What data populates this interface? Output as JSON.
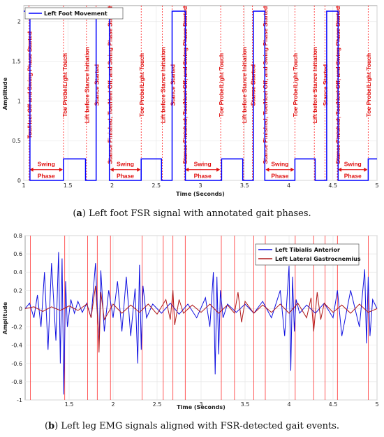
{
  "chart_data": [
    {
      "type": "line",
      "panel_label": "a",
      "caption": "Left foot FSR signal with annotated gait phases.",
      "xlabel": "Time (Seconds)",
      "ylabel": "Amplitude",
      "xlim": [
        1,
        5
      ],
      "ylim": [
        0,
        2.2
      ],
      "xticks": [
        "1",
        "1.5",
        "2",
        "2.5",
        "3",
        "3.5",
        "4",
        "4.5",
        "5"
      ],
      "yticks": [
        "0",
        "0.5",
        "1",
        "1.5",
        "2"
      ],
      "legend_position": "top-left",
      "series": [
        {
          "name": "Left Foot Movement",
          "color": "#0000ff",
          "x": [
            1.0,
            1.07,
            1.07,
            1.45,
            1.45,
            1.7,
            1.7,
            1.82,
            1.82,
            1.97,
            1.97,
            2.33,
            2.33,
            2.56,
            2.56,
            2.68,
            2.68,
            2.83,
            2.83,
            3.24,
            3.24,
            3.48,
            3.48,
            3.6,
            3.6,
            3.73,
            3.73,
            4.07,
            4.07,
            4.3,
            4.3,
            4.43,
            4.43,
            4.56,
            4.56,
            4.9,
            4.9,
            5.0
          ],
          "y": [
            2.13,
            2.13,
            0,
            0,
            0.27,
            0.27,
            0,
            0,
            2.13,
            2.13,
            0,
            0,
            0.27,
            0.27,
            0,
            0,
            2.13,
            2.13,
            0,
            0,
            0.27,
            0.27,
            0,
            0,
            2.13,
            2.13,
            0,
            0,
            0.27,
            0.27,
            0,
            0,
            2.13,
            2.13,
            0,
            0,
            0.27,
            0.27
          ]
        }
      ],
      "event_lines_x": [
        1.06,
        1.45,
        1.71,
        1.82,
        1.97,
        2.33,
        2.57,
        2.68,
        2.82,
        3.23,
        3.49,
        3.59,
        3.73,
        4.07,
        4.29,
        4.41,
        4.55,
        4.9
      ],
      "annotations": [
        {
          "text": "Toe/Heel Off and Swing Phase Started",
          "x": 1.09
        },
        {
          "text": "Toe Probe/Light Touch",
          "x": 1.49
        },
        {
          "text": "Lift before Stance Initiation",
          "x": 1.74
        },
        {
          "text": "Stance Started",
          "x": 1.85
        },
        {
          "text": "Stance Finished, Toe/Heel Off, and Swing Phase Started",
          "x": 2.0
        },
        {
          "text": "Toe Probe/Light Touch",
          "x": 2.36
        },
        {
          "text": "Lift before Stance Initiation",
          "x": 2.6
        },
        {
          "text": "Stance Started",
          "x": 2.71
        },
        {
          "text": "Stance Finished, Toe/Heel Off, and Swing Phase Started",
          "x": 2.85
        },
        {
          "text": "Toe Probe/Light Touch",
          "x": 3.26
        },
        {
          "text": "Lift before Stance Initiation",
          "x": 3.52
        },
        {
          "text": "Stance Started",
          "x": 3.62
        },
        {
          "text": "Stance Finished, Toe/Heel Off, and Swing Phase Started",
          "x": 3.76
        },
        {
          "text": "Toe Probe/Light Touch",
          "x": 4.1
        },
        {
          "text": "Lift before Stance Initiation",
          "x": 4.32
        },
        {
          "text": "Stance Started",
          "x": 4.44
        },
        {
          "text": "Stance Finished, Toe/Heel Off, and Swing Phase Started",
          "x": 4.58
        },
        {
          "text": "Toe Probe/Light Touch",
          "x": 4.93
        }
      ],
      "swing_phases": [
        {
          "label_top": "Swing",
          "label_bottom": "Phase",
          "x_start": 1.06,
          "x_end": 1.45
        },
        {
          "label_top": "Swing",
          "label_bottom": "Phase",
          "x_start": 1.97,
          "x_end": 2.33
        },
        {
          "label_top": "Swing",
          "label_bottom": "Phase",
          "x_start": 2.82,
          "x_end": 3.23
        },
        {
          "label_top": "Swing",
          "label_bottom": "Phase",
          "x_start": 3.73,
          "x_end": 4.07
        },
        {
          "label_top": "Swing",
          "label_bottom": "Phase",
          "x_start": 4.55,
          "x_end": 4.9
        }
      ]
    },
    {
      "type": "line",
      "panel_label": "b",
      "caption": "Left leg EMG signals aligned with FSR-detected gait events.",
      "xlabel": "Time (Seconds)",
      "ylabel": "Amplitude",
      "xlim": [
        1,
        5
      ],
      "ylim": [
        -1,
        0.8
      ],
      "xticks": [
        "1.5",
        "2",
        "2.5",
        "3",
        "3.5",
        "4",
        "4.5",
        "5"
      ],
      "yticks": [
        "0.8",
        "0.6",
        "0.4",
        "0.2",
        "0",
        "-0.2",
        "-0.4",
        "-0.6",
        "-0.8",
        "-1"
      ],
      "legend_position": "top-right",
      "series": [
        {
          "name": "Left Tibialis Anterior",
          "color": "#1010e0",
          "x": [
            1.0,
            1.05,
            1.1,
            1.14,
            1.18,
            1.22,
            1.26,
            1.3,
            1.35,
            1.38,
            1.4,
            1.42,
            1.44,
            1.46,
            1.48,
            1.52,
            1.56,
            1.6,
            1.65,
            1.7,
            1.75,
            1.8,
            1.84,
            1.86,
            1.9,
            1.95,
            2.0,
            2.05,
            2.1,
            2.15,
            2.2,
            2.25,
            2.28,
            2.3,
            2.32,
            2.34,
            2.38,
            2.45,
            2.55,
            2.65,
            2.75,
            2.85,
            2.95,
            3.05,
            3.1,
            3.14,
            3.16,
            3.18,
            3.2,
            3.22,
            3.25,
            3.3,
            3.4,
            3.5,
            3.6,
            3.7,
            3.8,
            3.9,
            3.95,
            4.0,
            4.02,
            4.04,
            4.06,
            4.08,
            4.12,
            4.2,
            4.3,
            4.4,
            4.5,
            4.55,
            4.6,
            4.7,
            4.8,
            4.86,
            4.88,
            4.9,
            4.92,
            4.95,
            5.0
          ],
          "y": [
            0.0,
            0.06,
            -0.1,
            0.15,
            -0.2,
            0.4,
            -0.45,
            0.5,
            -0.35,
            0.62,
            -0.6,
            0.55,
            -0.94,
            0.3,
            -0.2,
            0.1,
            -0.05,
            0.08,
            -0.04,
            0.06,
            -0.1,
            0.5,
            -0.42,
            0.42,
            -0.25,
            0.2,
            -0.1,
            0.3,
            -0.25,
            0.35,
            -0.3,
            0.22,
            -0.6,
            0.48,
            -0.45,
            0.25,
            -0.1,
            0.05,
            -0.05,
            0.06,
            -0.06,
            0.05,
            -0.1,
            0.12,
            -0.2,
            0.4,
            -0.72,
            0.35,
            -0.5,
            0.2,
            -0.1,
            0.05,
            -0.04,
            0.05,
            -0.05,
            0.08,
            -0.1,
            0.2,
            -0.3,
            0.47,
            -0.68,
            0.35,
            -0.25,
            0.1,
            -0.05,
            0.04,
            -0.05,
            0.06,
            -0.1,
            0.2,
            -0.3,
            0.2,
            -0.2,
            0.43,
            -0.38,
            0.35,
            -0.3,
            0.1,
            0.0
          ]
        },
        {
          "name": "Left Lateral Gastrocnemius",
          "color": "#b01818",
          "x": [
            1.0,
            1.1,
            1.2,
            1.3,
            1.4,
            1.5,
            1.6,
            1.7,
            1.75,
            1.8,
            1.83,
            1.84,
            1.86,
            1.9,
            2.0,
            2.1,
            2.2,
            2.3,
            2.4,
            2.5,
            2.6,
            2.65,
            2.68,
            2.7,
            2.75,
            2.8,
            2.9,
            3.0,
            3.1,
            3.2,
            3.3,
            3.38,
            3.42,
            3.46,
            3.5,
            3.6,
            3.7,
            3.8,
            3.9,
            4.0,
            4.1,
            4.2,
            4.25,
            4.28,
            4.32,
            4.36,
            4.4,
            4.5,
            4.6,
            4.7,
            4.8,
            4.9,
            5.0
          ],
          "y": [
            0.0,
            0.02,
            -0.03,
            0.02,
            -0.02,
            0.03,
            -0.02,
            0.05,
            -0.1,
            0.25,
            -0.2,
            -0.48,
            0.18,
            -0.12,
            0.05,
            -0.05,
            0.04,
            -0.04,
            0.05,
            -0.06,
            0.1,
            -0.12,
            0.2,
            -0.18,
            0.1,
            -0.05,
            0.04,
            -0.04,
            0.05,
            -0.05,
            0.04,
            -0.05,
            0.18,
            -0.15,
            0.08,
            -0.05,
            0.04,
            -0.04,
            0.05,
            -0.05,
            0.06,
            -0.1,
            0.12,
            -0.25,
            0.18,
            -0.12,
            0.06,
            -0.04,
            0.04,
            -0.05,
            0.05,
            -0.04,
            0.0
          ]
        }
      ],
      "event_lines_x": [
        1.06,
        1.45,
        1.71,
        1.82,
        1.97,
        2.33,
        2.57,
        2.68,
        2.82,
        3.23,
        3.38,
        3.6,
        3.73,
        4.07,
        4.28,
        4.41,
        4.55,
        4.9
      ]
    }
  ]
}
